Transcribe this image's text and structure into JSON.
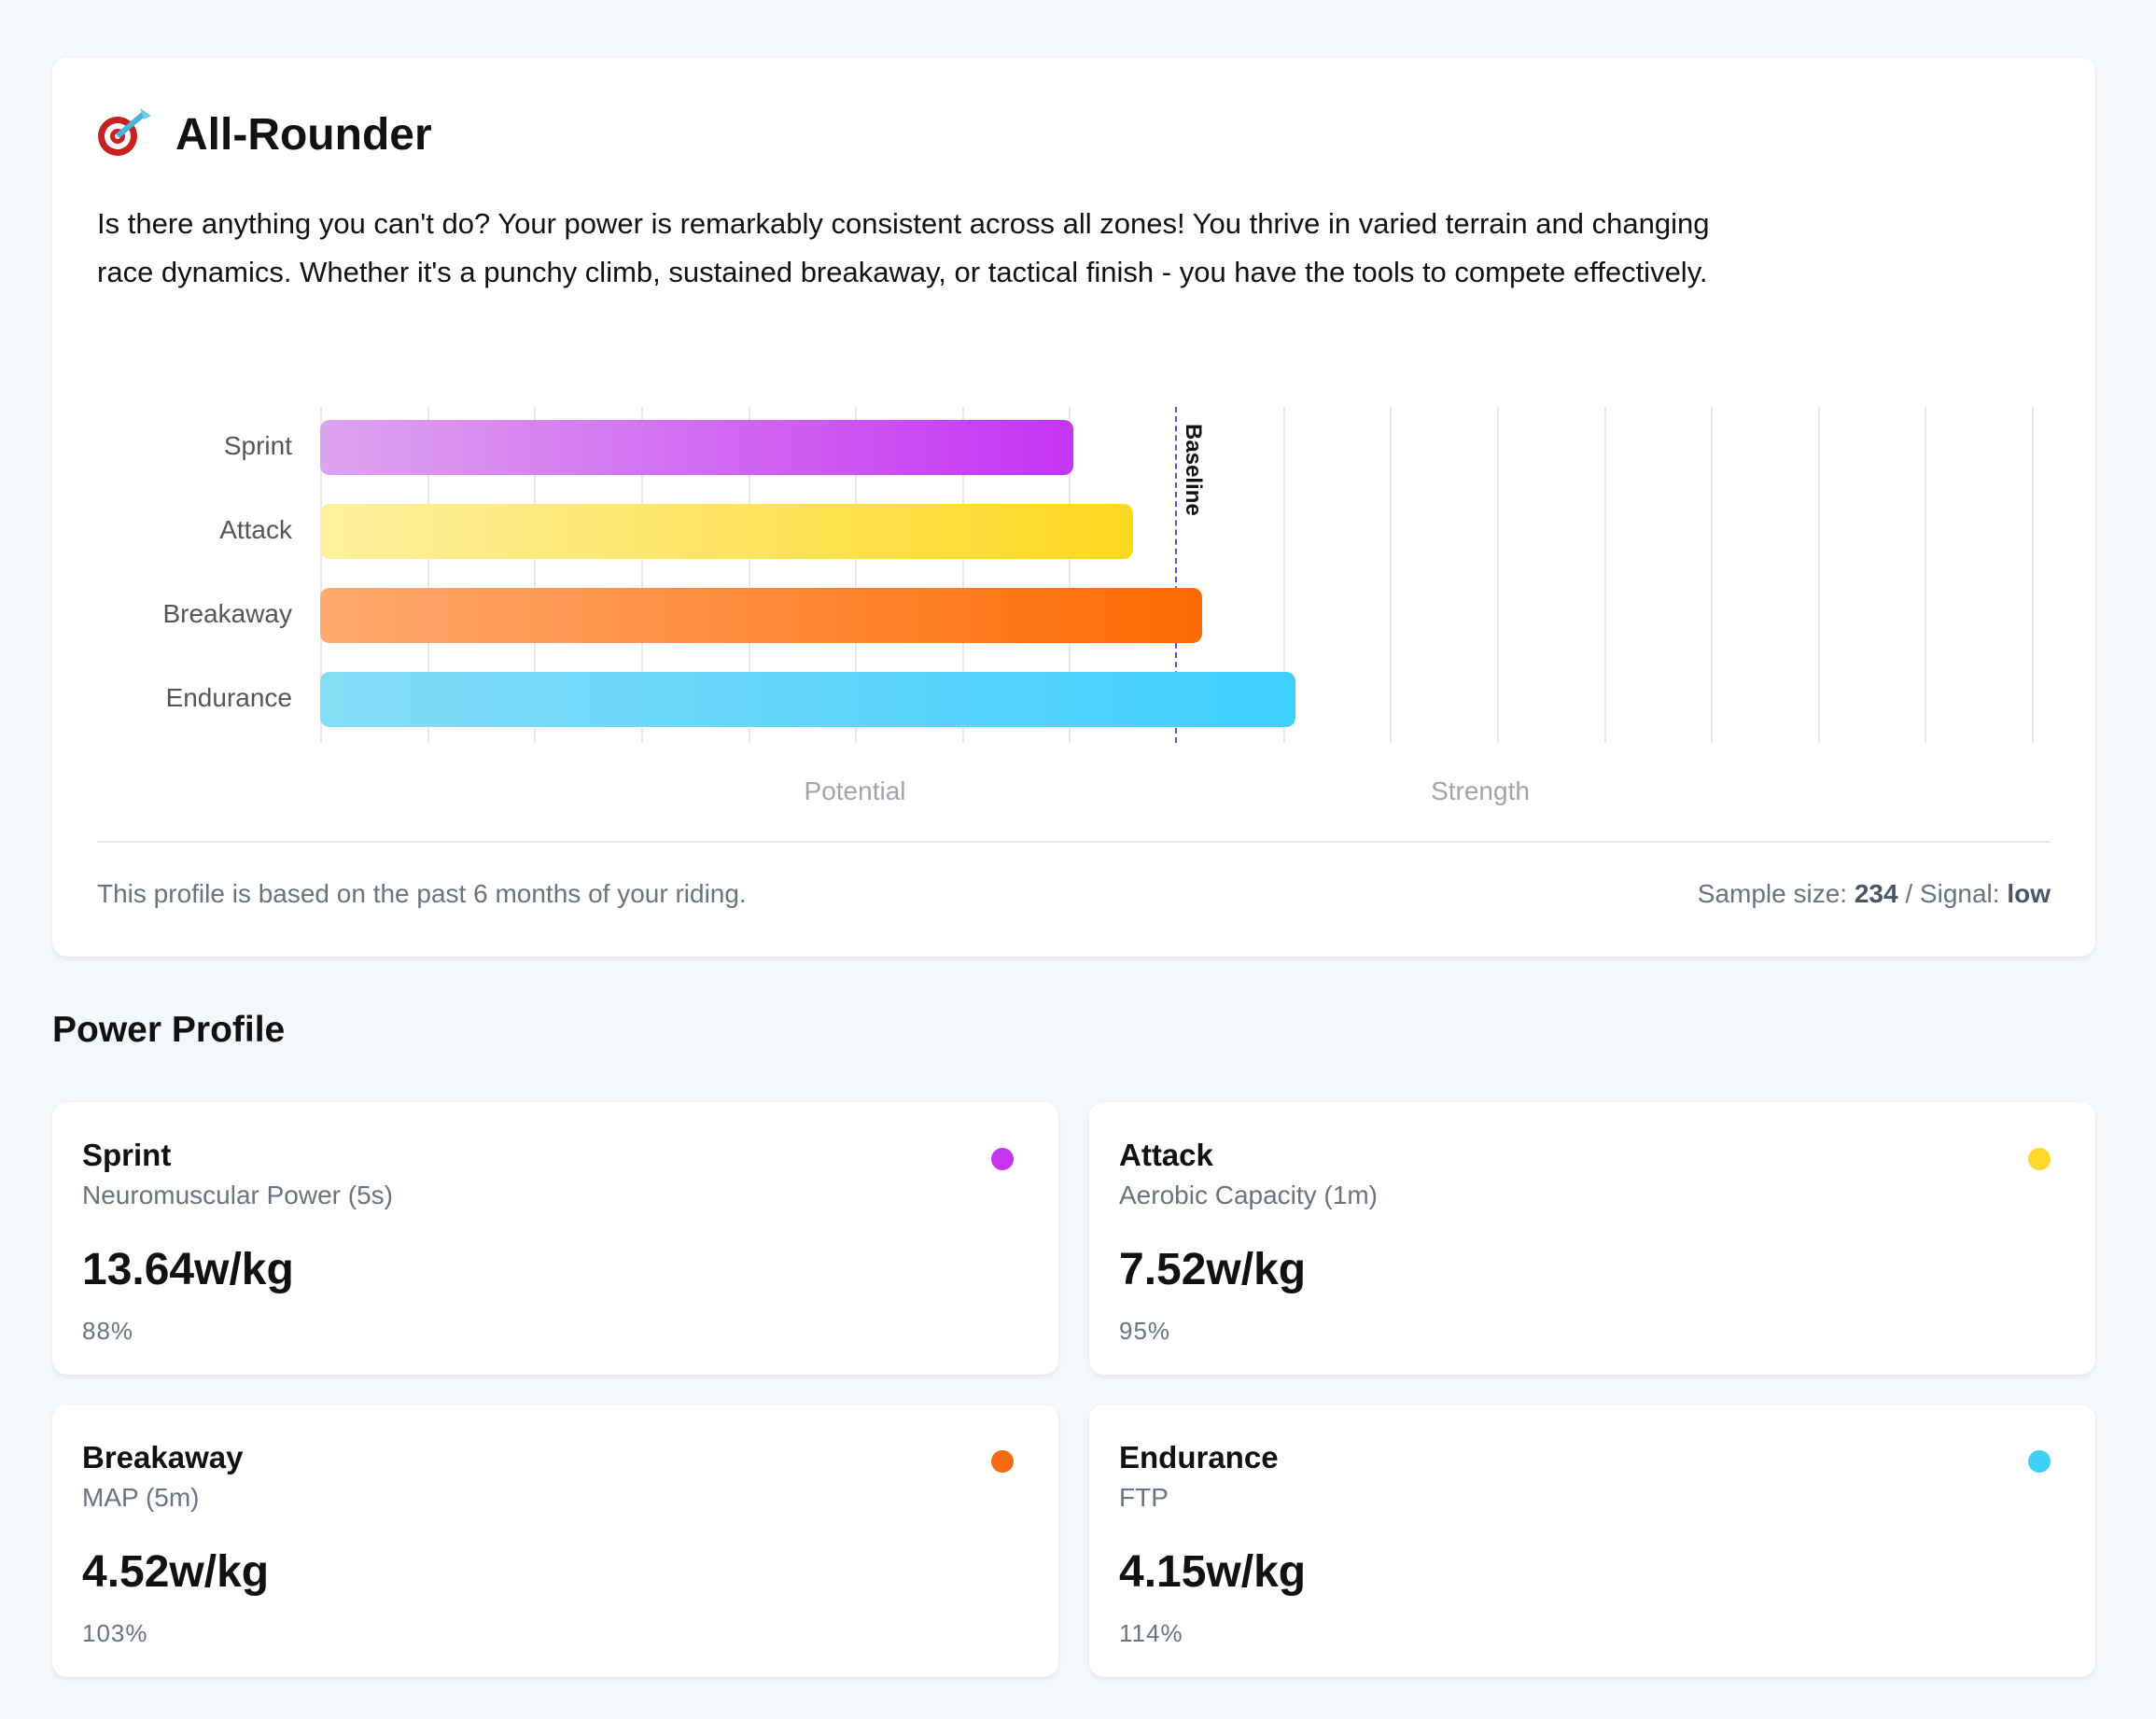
{
  "profile": {
    "icon": "dart-target-icon",
    "title": "All-Rounder",
    "description": "Is there anything you can't do? Your power is remarkably consistent across all zones! You thrive in varied terrain and changing race dynamics. Whether it's a punchy climb, sustained breakaway, or tactical finish - you have the tools to compete effectively.",
    "footer_left": "This profile is based on the past 6 months of your riding.",
    "sample_label": "Sample size:",
    "sample_value": "234",
    "signal_label": "Signal:",
    "signal_value": "low"
  },
  "chart_data": {
    "type": "bar",
    "orientation": "horizontal",
    "categories": [
      "Sprint",
      "Attack",
      "Breakaway",
      "Endurance"
    ],
    "values": [
      88,
      95,
      103,
      114
    ],
    "xlim": [
      0,
      200
    ],
    "grid": true,
    "baseline": {
      "value": 100,
      "label": "Baseline"
    },
    "x_region_labels": [
      "Potential",
      "Strength"
    ],
    "colors": [
      [
        "#dda5ee",
        "#c633f5"
      ],
      [
        "#fff0a0",
        "#ffd820"
      ],
      [
        "#ffaa70",
        "#ff6a00"
      ],
      [
        "#85dcf5",
        "#3dd0ff"
      ]
    ]
  },
  "section_title": "Power Profile",
  "cards": [
    {
      "name": "Sprint",
      "sub": "Neuromuscular Power (5s)",
      "value": "13.64w/kg",
      "pct": "88%",
      "color": "#c535f0"
    },
    {
      "name": "Attack",
      "sub": "Aerobic Capacity (1m)",
      "value": "7.52w/kg",
      "pct": "95%",
      "color": "#fbd82a"
    },
    {
      "name": "Breakaway",
      "sub": "MAP (5m)",
      "value": "4.52w/kg",
      "pct": "103%",
      "color": "#f66a12"
    },
    {
      "name": "Endurance",
      "sub": "FTP",
      "value": "4.15w/kg",
      "pct": "114%",
      "color": "#3fd0f8"
    }
  ]
}
